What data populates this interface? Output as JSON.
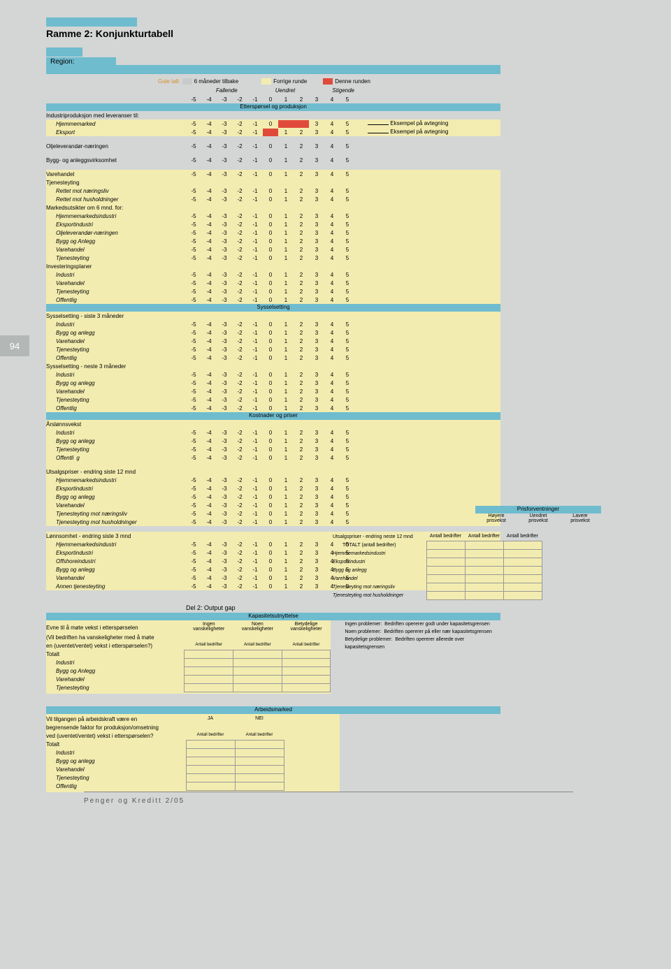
{
  "side": "94",
  "title": "Ramme 2: Konjunkturtabell",
  "region": "Region:",
  "legend": {
    "gule": "Gule tall:",
    "six": "6 måneder tilbake",
    "forrige": "Forrige runde",
    "denne": "Denne runden",
    "fallende": "Fallende",
    "uendret": "Uendret",
    "stigende": "Stigende"
  },
  "scale": [
    "-5",
    "-4",
    "-3",
    "-2",
    "-1",
    "0",
    "1",
    "2",
    "3",
    "4",
    "5"
  ],
  "sec_ettersporsel": "Etterspørsel og produksjon",
  "r1": "Industriproduksjon med leveranser til:",
  "r1a": "Hjemmemarked",
  "r1b": "Eksport",
  "ex": "Eksempel på avtegning",
  "olje": "Oljeleverandør-næringen",
  "bygg": "Bygg- og anleggsvirksomhet",
  "vare": "Varehandel",
  "tjen": "Tjenesteyting",
  "tj1": "Rettet mot næringsliv",
  "tj2": "Rettet mot husholdninger",
  "mark": "Markedsutsikter om 6 mnd. for:",
  "m1": "Hjemmemarkedsindustri",
  "m2": "Eksportindustri",
  "m3": "Oljeleverandør-næringen",
  "m4": "Bygg og Anlegg",
  "m5": "Varehandel",
  "m6": "Tjenesteyting",
  "inv": "Investeringsplaner",
  "i1": "Industri",
  "i2": "Varehandel",
  "i3": "Tjenesteyting",
  "i4": "Offentlig",
  "sec_syss": "Sysselsetting",
  "s3": "Sysselsetting - siste 3 måneder",
  "sn3": "Sysselsetting - neste 3 måneder",
  "s_ind": "Industri",
  "s_ba": "Bygg og anlegg",
  "s_var": "Varehandel",
  "s_tj": "Tjenesteyting",
  "s_off": "Offentlig",
  "sec_kost": "Kostnader og priser",
  "arsl": "Årslønnsvekst",
  "ut12": "Utsalgspriser - endring siste 12 mnd",
  "u1": "Hjemmemarkedsindustri",
  "u2": "Eksportindustri",
  "u3": "Bygg og anlegg",
  "u4": "Varehandel",
  "u5": "Tjenesteyting mot næringsliv",
  "u6": "Tjenesteyting mot husholdninger",
  "lonn3": "Lønnsomhet - endring siste 3 mnd",
  "l1": "Hjemmemarkedsindustri",
  "l2": "Eksportindustri",
  "l3": "Offshoreindustri",
  "l4": "Bygg og anlegg",
  "l5": "Varehandel",
  "l6": "Annen tjenesteyting",
  "pf": "Prisforventninger",
  "pf1": "Høyere",
  "pf2": "Uendret",
  "pf3": "Lavere",
  "pfv": "prisvekst",
  "un12": "Utsalgspriser - endring neste 12 mnd",
  "ab": "Antall bedrifter",
  "tot": "TOTALT  (antall bedrifter)",
  "px1": "Hjemmemarkedsindustri",
  "px2": "Eksportindustri",
  "px3": "Bygg og anlegg",
  "px4": "Varehandel",
  "px5": "Tjenesteyting mot næringsliv",
  "px6": "Tjenesteyting mot husholdninger",
  "del2": "Del 2: Output gap",
  "kap": "Kapasitetsutnyttelse",
  "evne": "Evne til å møte vekst i etterspørselen",
  "evne2": "(Vil bedriften ha vanskeligheter med å møte",
  "evne3": "en (uventet/ventet) vekst i etterspørselen?)",
  "k1": "Ingen",
  "k2": "Noen",
  "k3": "Betydelige",
  "kv": "vanskeligheter",
  "ex1": "Ingen problemer:",
  "ex1b": "Bedriften opererer godt under kapasitetsgrensen",
  "ex2": "Noen problemer:",
  "ex2b": "Bedriften opererer på eller nær kapasitetsgrensen",
  "ex3": "Betydelige problemer:",
  "ex3b": "Bedriften opererer allerede over kapasitetsgrensen",
  "totalt": "Totalt",
  "arb": "Arbeidsmarked",
  "arbq": "Vil tilgangen på arbeidskraft være en",
  "arbq2": "begrensende faktor for produksjon/omsetning",
  "arbq3": "ved (uventet/ventet) vekst i etterspørselen?",
  "ja": "JA",
  "nei": "NEI",
  "a1": "Industri",
  "a2": "Bygg og anlegg",
  "a3": "Varehandel",
  "a4": "Tjenesteyting",
  "a5": "Offentlig",
  "foot": "Penger og Kreditt 2/05"
}
